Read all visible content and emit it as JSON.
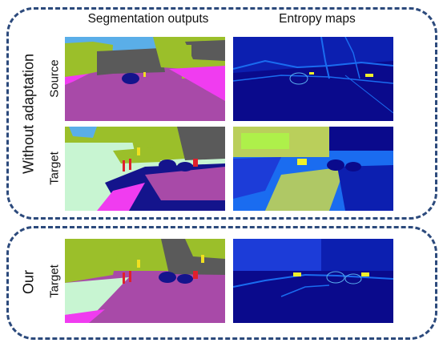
{
  "columns": {
    "segmentation": "Segmentation outputs",
    "entropy": "Entropy maps"
  },
  "groups": {
    "top": "Without adaptation",
    "bottom": "Our"
  },
  "rows": {
    "source": "Source",
    "target": "Target",
    "our_target": "Target"
  },
  "colors": {
    "frame": "#2c4a7c",
    "road": "#a84aa8",
    "sidewalk": "#f03cf0",
    "vegetation": "#9bbf2a",
    "sky": "#5aaee8",
    "building": "#5a5a5a",
    "terrain": "#c8f5d2",
    "car": "#14148c",
    "person": "#e0202c",
    "pole": "#f0e020",
    "entropy_low": "#0a0a8c",
    "entropy_mid": "#1a6cf0",
    "entropy_high": "#f0f02a"
  }
}
